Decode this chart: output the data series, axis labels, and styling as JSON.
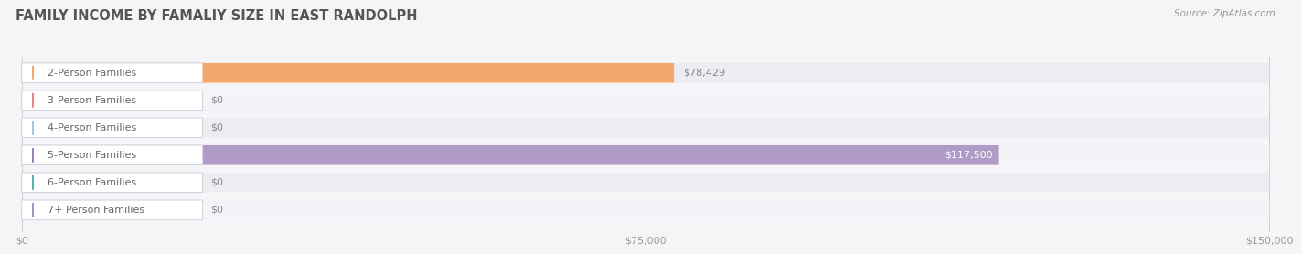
{
  "title": "FAMILY INCOME BY FAMALIY SIZE IN EAST RANDOLPH",
  "source": "Source: ZipAtlas.com",
  "categories": [
    "2-Person Families",
    "3-Person Families",
    "4-Person Families",
    "5-Person Families",
    "6-Person Families",
    "7+ Person Families"
  ],
  "values": [
    78429,
    0,
    0,
    117500,
    0,
    0
  ],
  "bar_colors": [
    "#f5a86e",
    "#f08080",
    "#a8c4e0",
    "#b09ac8",
    "#6dbfb8",
    "#a8a8d8"
  ],
  "label_circle_colors": [
    "#f5a86e",
    "#f08080",
    "#a8c4e0",
    "#9b7fba",
    "#5bb5ae",
    "#9898c8"
  ],
  "value_labels": [
    "$78,429",
    "$0",
    "$0",
    "$117,500",
    "$0",
    "$0"
  ],
  "row_bg_colors": [
    "#ececf2",
    "#f4f4f8",
    "#ececf2",
    "#f4f4f8",
    "#ececf2",
    "#f4f4f8"
  ],
  "xlim": [
    0,
    150000
  ],
  "xticks": [
    0,
    75000,
    150000
  ],
  "xtick_labels": [
    "$0",
    "$75,000",
    "$150,000"
  ],
  "background_color": "#f5f5f8",
  "title_fontsize": 10.5,
  "label_fontsize": 8,
  "value_fontsize": 8,
  "source_fontsize": 7.5
}
